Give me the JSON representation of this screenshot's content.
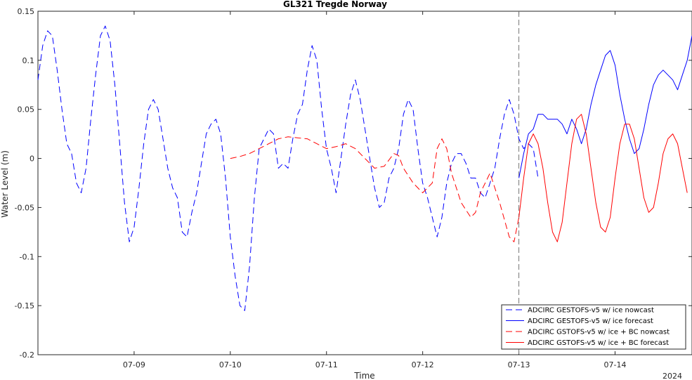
{
  "chart_data": {
    "type": "line",
    "title": "GL321 Tregde Norway",
    "xlabel": "Time",
    "ylabel": "Water Level (m)",
    "x_year_label": "2024",
    "x_units": "days (July 2024)",
    "xlim": [
      8.0,
      14.8
    ],
    "ylim": [
      -0.2,
      0.15
    ],
    "y_ticks": [
      -0.2,
      -0.15,
      -0.1,
      -0.05,
      0,
      0.05,
      0.1,
      0.15
    ],
    "y_tick_labels": [
      "-0.2",
      "-0.15",
      "-0.1",
      "-0.05",
      "0",
      "0.05",
      "0.1",
      "0.15"
    ],
    "x_ticks": [
      9,
      10,
      11,
      12,
      13,
      14
    ],
    "x_tick_labels": [
      "07-09",
      "07-10",
      "07-11",
      "07-12",
      "07-13",
      "07-14"
    ],
    "forecast_start_x": 13.0,
    "grid": false,
    "legend_position": "bottom-right",
    "series": [
      {
        "name": "ADCIRC GESTOFS-v5 w/ ice nowcast",
        "color": "#0000ff",
        "style": "dashed",
        "points": [
          [
            8.0,
            0.08
          ],
          [
            8.05,
            0.115
          ],
          [
            8.1,
            0.13
          ],
          [
            8.15,
            0.125
          ],
          [
            8.2,
            0.09
          ],
          [
            8.25,
            0.05
          ],
          [
            8.3,
            0.015
          ],
          [
            8.35,
            0.005
          ],
          [
            8.4,
            -0.025
          ],
          [
            8.45,
            -0.035
          ],
          [
            8.5,
            -0.01
          ],
          [
            8.55,
            0.04
          ],
          [
            8.6,
            0.085
          ],
          [
            8.65,
            0.125
          ],
          [
            8.7,
            0.135
          ],
          [
            8.75,
            0.12
          ],
          [
            8.8,
            0.075
          ],
          [
            8.85,
            0.015
          ],
          [
            8.9,
            -0.045
          ],
          [
            8.95,
            -0.085
          ],
          [
            9.0,
            -0.07
          ],
          [
            9.05,
            -0.03
          ],
          [
            9.1,
            0.015
          ],
          [
            9.15,
            0.05
          ],
          [
            9.2,
            0.06
          ],
          [
            9.25,
            0.05
          ],
          [
            9.3,
            0.02
          ],
          [
            9.35,
            -0.01
          ],
          [
            9.4,
            -0.03
          ],
          [
            9.45,
            -0.04
          ],
          [
            9.5,
            -0.075
          ],
          [
            9.55,
            -0.08
          ],
          [
            9.6,
            -0.055
          ],
          [
            9.65,
            -0.035
          ],
          [
            9.7,
            -0.005
          ],
          [
            9.75,
            0.025
          ],
          [
            9.8,
            0.035
          ],
          [
            9.85,
            0.04
          ],
          [
            9.9,
            0.025
          ],
          [
            9.95,
            -0.02
          ],
          [
            10.0,
            -0.08
          ],
          [
            10.05,
            -0.12
          ],
          [
            10.1,
            -0.15
          ],
          [
            10.15,
            -0.155
          ],
          [
            10.2,
            -0.11
          ],
          [
            10.25,
            -0.04
          ],
          [
            10.3,
            0.01
          ],
          [
            10.35,
            0.02
          ],
          [
            10.4,
            0.03
          ],
          [
            10.45,
            0.025
          ],
          [
            10.5,
            -0.01
          ],
          [
            10.55,
            -0.005
          ],
          [
            10.6,
            -0.01
          ],
          [
            10.65,
            0.02
          ],
          [
            10.7,
            0.045
          ],
          [
            10.75,
            0.055
          ],
          [
            10.8,
            0.09
          ],
          [
            10.85,
            0.115
          ],
          [
            10.9,
            0.1
          ],
          [
            10.95,
            0.05
          ],
          [
            11.0,
            0.01
          ],
          [
            11.05,
            -0.01
          ],
          [
            11.1,
            -0.035
          ],
          [
            11.15,
            0.0
          ],
          [
            11.2,
            0.035
          ],
          [
            11.25,
            0.065
          ],
          [
            11.3,
            0.08
          ],
          [
            11.35,
            0.06
          ],
          [
            11.4,
            0.03
          ],
          [
            11.45,
            0.0
          ],
          [
            11.5,
            -0.03
          ],
          [
            11.55,
            -0.05
          ],
          [
            11.6,
            -0.045
          ],
          [
            11.65,
            -0.02
          ],
          [
            11.7,
            -0.01
          ],
          [
            11.75,
            0.01
          ],
          [
            11.8,
            0.045
          ],
          [
            11.85,
            0.06
          ],
          [
            11.9,
            0.05
          ],
          [
            11.95,
            0.01
          ],
          [
            12.0,
            -0.025
          ],
          [
            12.05,
            -0.04
          ],
          [
            12.1,
            -0.06
          ],
          [
            12.15,
            -0.08
          ],
          [
            12.2,
            -0.06
          ],
          [
            12.25,
            -0.025
          ],
          [
            12.3,
            -0.005
          ],
          [
            12.35,
            0.005
          ],
          [
            12.4,
            0.005
          ],
          [
            12.45,
            -0.005
          ],
          [
            12.5,
            -0.02
          ],
          [
            12.55,
            -0.02
          ],
          [
            12.6,
            -0.035
          ],
          [
            12.65,
            -0.04
          ],
          [
            12.7,
            -0.025
          ],
          [
            12.75,
            -0.01
          ],
          [
            12.8,
            0.02
          ],
          [
            12.85,
            0.045
          ],
          [
            12.9,
            0.06
          ],
          [
            12.95,
            0.045
          ],
          [
            13.0,
            0.02
          ],
          [
            13.05,
            0.01
          ],
          [
            13.1,
            0.015
          ],
          [
            13.15,
            0.01
          ],
          [
            13.2,
            -0.02
          ]
        ]
      },
      {
        "name": "ADCIRC GESTOFS-v5 w/ ice forecast",
        "color": "#0000ff",
        "style": "solid",
        "points": [
          [
            13.0,
            -0.02
          ],
          [
            13.05,
            0.005
          ],
          [
            13.1,
            0.025
          ],
          [
            13.15,
            0.03
          ],
          [
            13.2,
            0.045
          ],
          [
            13.25,
            0.045
          ],
          [
            13.3,
            0.04
          ],
          [
            13.35,
            0.04
          ],
          [
            13.4,
            0.04
          ],
          [
            13.45,
            0.035
          ],
          [
            13.5,
            0.025
          ],
          [
            13.55,
            0.04
          ],
          [
            13.6,
            0.03
          ],
          [
            13.65,
            0.015
          ],
          [
            13.7,
            0.03
          ],
          [
            13.75,
            0.055
          ],
          [
            13.8,
            0.075
          ],
          [
            13.85,
            0.09
          ],
          [
            13.9,
            0.105
          ],
          [
            13.95,
            0.11
          ],
          [
            14.0,
            0.095
          ],
          [
            14.05,
            0.065
          ],
          [
            14.1,
            0.04
          ],
          [
            14.15,
            0.02
          ],
          [
            14.2,
            0.005
          ],
          [
            14.25,
            0.01
          ],
          [
            14.3,
            0.03
          ],
          [
            14.35,
            0.055
          ],
          [
            14.4,
            0.075
          ],
          [
            14.45,
            0.085
          ],
          [
            14.5,
            0.09
          ],
          [
            14.55,
            0.085
          ],
          [
            14.6,
            0.08
          ],
          [
            14.65,
            0.07
          ],
          [
            14.7,
            0.085
          ],
          [
            14.75,
            0.1
          ],
          [
            14.8,
            0.125
          ]
        ]
      },
      {
        "name": "ADCIRC GSTOFS-v5 w/ ice + BC nowcast",
        "color": "#ff0000",
        "style": "dashed",
        "points": [
          [
            10.0,
            0.0
          ],
          [
            10.1,
            0.002
          ],
          [
            10.2,
            0.005
          ],
          [
            10.3,
            0.01
          ],
          [
            10.4,
            0.015
          ],
          [
            10.5,
            0.02
          ],
          [
            10.6,
            0.022
          ],
          [
            10.7,
            0.021
          ],
          [
            10.8,
            0.02
          ],
          [
            10.9,
            0.015
          ],
          [
            11.0,
            0.01
          ],
          [
            11.1,
            0.012
          ],
          [
            11.2,
            0.015
          ],
          [
            11.3,
            0.01
          ],
          [
            11.4,
            0.0
          ],
          [
            11.5,
            -0.01
          ],
          [
            11.6,
            -0.008
          ],
          [
            11.7,
            0.005
          ],
          [
            11.75,
            0.003
          ],
          [
            11.8,
            -0.01
          ],
          [
            11.9,
            -0.025
          ],
          [
            12.0,
            -0.035
          ],
          [
            12.1,
            -0.025
          ],
          [
            12.15,
            0.01
          ],
          [
            12.2,
            0.02
          ],
          [
            12.25,
            0.01
          ],
          [
            12.3,
            -0.015
          ],
          [
            12.4,
            -0.045
          ],
          [
            12.5,
            -0.06
          ],
          [
            12.55,
            -0.055
          ],
          [
            12.6,
            -0.035
          ],
          [
            12.7,
            -0.015
          ],
          [
            12.8,
            -0.045
          ],
          [
            12.9,
            -0.08
          ],
          [
            12.95,
            -0.085
          ],
          [
            13.0,
            -0.06
          ]
        ]
      },
      {
        "name": "ADCIRC GSTOFS-v5 w/ ice + BC forecast",
        "color": "#ff0000",
        "style": "solid",
        "points": [
          [
            13.0,
            -0.06
          ],
          [
            13.05,
            -0.02
          ],
          [
            13.1,
            0.015
          ],
          [
            13.15,
            0.025
          ],
          [
            13.2,
            0.015
          ],
          [
            13.25,
            -0.01
          ],
          [
            13.3,
            -0.045
          ],
          [
            13.35,
            -0.075
          ],
          [
            13.4,
            -0.085
          ],
          [
            13.45,
            -0.065
          ],
          [
            13.5,
            -0.025
          ],
          [
            13.55,
            0.015
          ],
          [
            13.6,
            0.04
          ],
          [
            13.65,
            0.045
          ],
          [
            13.7,
            0.025
          ],
          [
            13.75,
            -0.01
          ],
          [
            13.8,
            -0.045
          ],
          [
            13.85,
            -0.07
          ],
          [
            13.9,
            -0.075
          ],
          [
            13.95,
            -0.06
          ],
          [
            14.0,
            -0.02
          ],
          [
            14.05,
            0.015
          ],
          [
            14.1,
            0.035
          ],
          [
            14.15,
            0.035
          ],
          [
            14.2,
            0.02
          ],
          [
            14.25,
            -0.01
          ],
          [
            14.3,
            -0.04
          ],
          [
            14.35,
            -0.055
          ],
          [
            14.4,
            -0.05
          ],
          [
            14.45,
            -0.025
          ],
          [
            14.5,
            0.005
          ],
          [
            14.55,
            0.02
          ],
          [
            14.6,
            0.025
          ],
          [
            14.65,
            0.015
          ],
          [
            14.7,
            -0.01
          ],
          [
            14.75,
            -0.035
          ]
        ]
      }
    ]
  }
}
